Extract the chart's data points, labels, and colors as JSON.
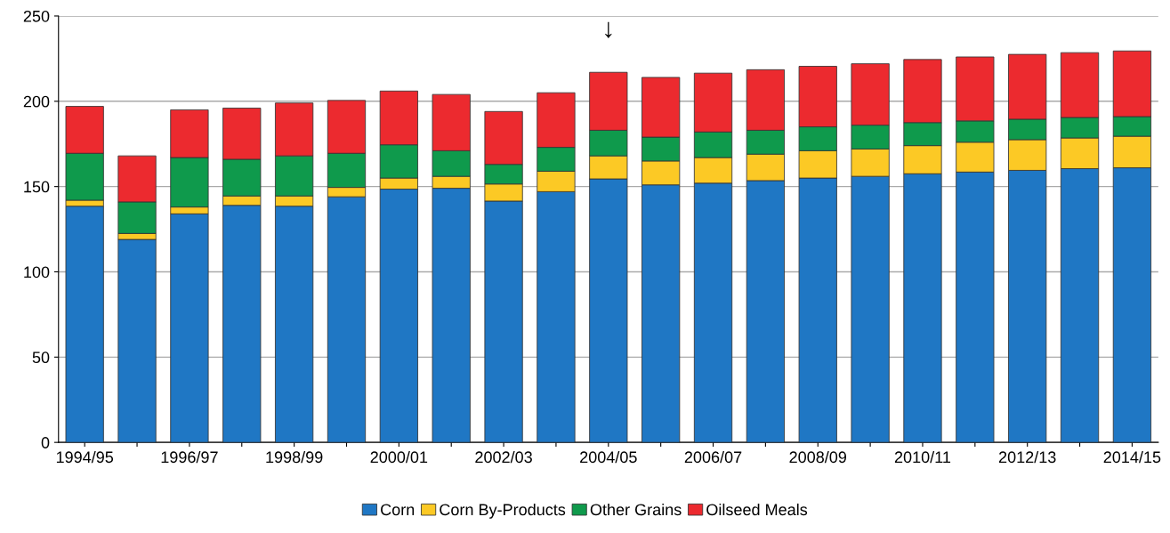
{
  "chart_data": {
    "type": "bar",
    "stacked": true,
    "categories": [
      "1994/95",
      null,
      "1996/97",
      null,
      "1998/99",
      null,
      "2000/01",
      null,
      "2002/03",
      null,
      "2004/05",
      null,
      "2006/07",
      null,
      "2008/09",
      null,
      "2010/11",
      null,
      "2012/13",
      null,
      "2014/15"
    ],
    "series": [
      {
        "name": "Corn",
        "color": "#1f77c4",
        "values": [
          138.5,
          119,
          134,
          139,
          138.5,
          144,
          148.5,
          149,
          141.5,
          147,
          154.5,
          151,
          152,
          153.5,
          155,
          156,
          157.5,
          158.5,
          159.5,
          160.5,
          161
        ]
      },
      {
        "name": "Corn By-Products",
        "color": "#fcc925",
        "values": [
          3.5,
          3.5,
          4,
          5.5,
          6,
          5.5,
          6.5,
          7,
          10,
          12,
          13.5,
          14,
          15,
          15.5,
          16,
          16,
          16.5,
          17.5,
          18,
          18,
          18.5
        ]
      },
      {
        "name": "Other Grains",
        "color": "#0f9a4c",
        "values": [
          27.5,
          18.5,
          29,
          21.5,
          23.5,
          20,
          19.5,
          15,
          11.5,
          14,
          15,
          14,
          15,
          14,
          14,
          14,
          13.5,
          12.5,
          12,
          12,
          11.5
        ]
      },
      {
        "name": "Oilseed Meals",
        "color": "#ec2a2f",
        "values": [
          27.5,
          27,
          28,
          30,
          31,
          31,
          31.5,
          33,
          31,
          32,
          34,
          35,
          34.5,
          35.5,
          35.5,
          36,
          37,
          37.5,
          38,
          38,
          38.5
        ]
      }
    ],
    "annotations": [
      {
        "text": "↓",
        "x": "2004/05",
        "y": 217
      }
    ],
    "ylim": [
      0,
      250
    ],
    "yticks": [
      0,
      50,
      100,
      150,
      200,
      250
    ],
    "grid": "y",
    "legend": "bottom"
  }
}
